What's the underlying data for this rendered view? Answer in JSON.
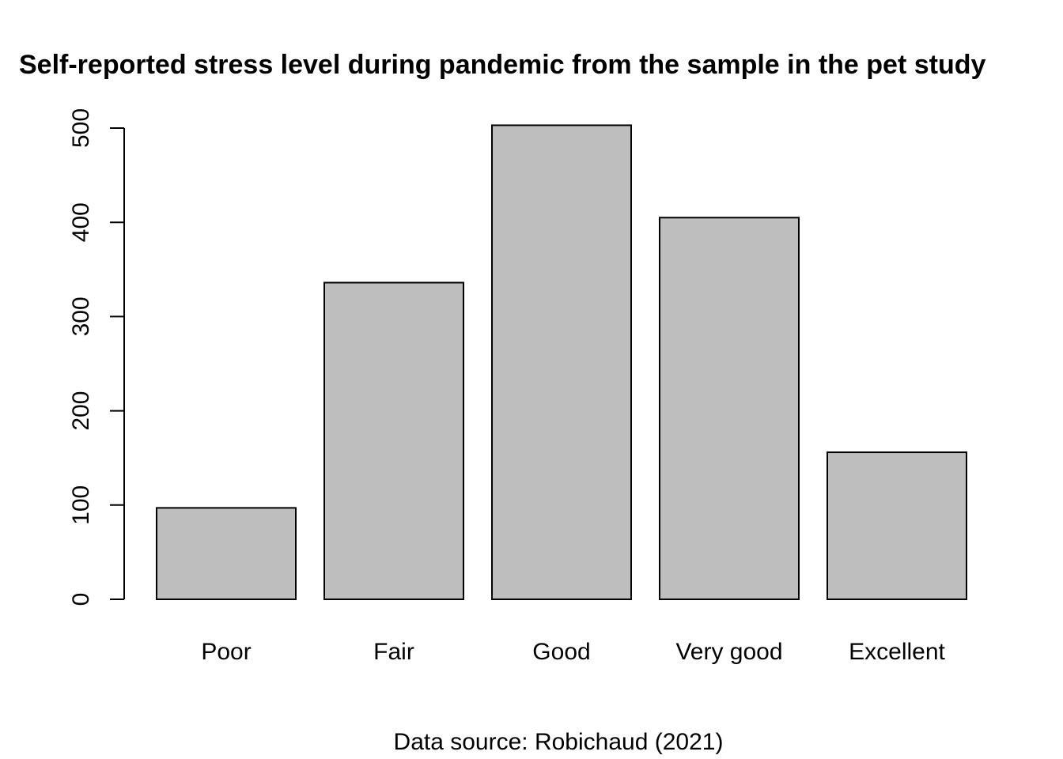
{
  "chart_data": {
    "type": "bar",
    "title": "Self-reported stress level during pandemic from the sample in the pet study",
    "caption": "Data source: Robichaud (2021)",
    "xlabel": "",
    "ylabel": "",
    "categories": [
      "Poor",
      "Fair",
      "Good",
      "Very good",
      "Excellent"
    ],
    "values": [
      97,
      336,
      503,
      405,
      156
    ],
    "ylim": [
      0,
      500
    ],
    "yticks": [
      0,
      100,
      200,
      300,
      400,
      500
    ],
    "grid": false,
    "legend": "none",
    "colors": {
      "bar_fill": "#bebebe",
      "bar_stroke": "#000000",
      "background": "#ffffff"
    }
  }
}
